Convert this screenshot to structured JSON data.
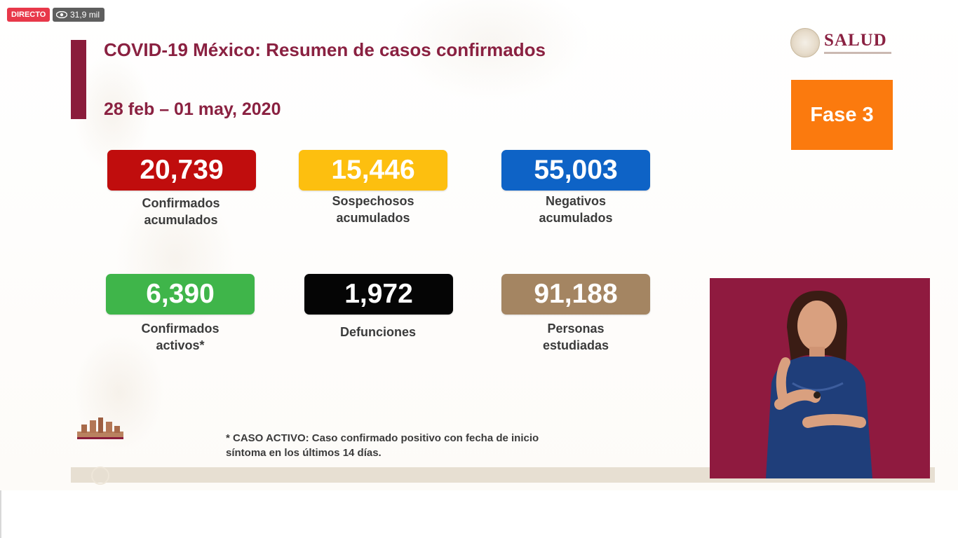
{
  "stream": {
    "live_label": "DIRECTO",
    "views": "31,9 mil",
    "views_icon": "eye-icon"
  },
  "slide": {
    "title": "COVID-19 México: Resumen de casos confirmados",
    "date": "28 feb – 01 may, 2020",
    "logo": "SALUD",
    "phase": "Fase 3",
    "stats": [
      {
        "value": "20,739",
        "label_line1": "Confirmados",
        "label_line2": "acumulados",
        "color": "#c00d0d"
      },
      {
        "value": "15,446",
        "label_line1": "Sospechosos",
        "label_line2": "acumulados",
        "color": "#fdbf0f"
      },
      {
        "value": "55,003",
        "label_line1": "Negativos",
        "label_line2": "acumulados",
        "color": "#0e63c6"
      },
      {
        "value": "6,390",
        "label_line1": "Confirmados",
        "label_line2": "activos*",
        "color": "#3fb54a"
      },
      {
        "value": "1,972",
        "label_line1": "Defunciones",
        "label_line2": "",
        "color": "#050505"
      },
      {
        "value": "91,188",
        "label_line1": "Personas",
        "label_line2": "estudiadas",
        "color": "#a48562"
      }
    ],
    "footnote_line1": "* CASO ACTIVO: Caso confirmado positivo con fecha de inicio",
    "footnote_line2": "síntoma en los últimos 14 días."
  },
  "colors": {
    "title": "#8a2141",
    "phase_bg": "#fb7a0e",
    "interpreter_bg": "#8f1a3f"
  }
}
